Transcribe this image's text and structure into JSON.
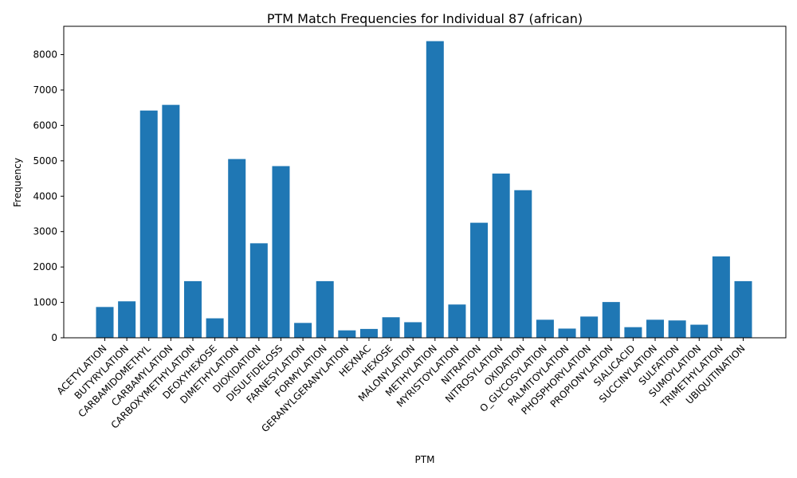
{
  "chart_data": {
    "type": "bar",
    "title": "PTM Match Frequencies for Individual 87 (african)",
    "xlabel": "PTM",
    "ylabel": "Frequency",
    "ylim": [
      0,
      8800
    ],
    "yticks": [
      0,
      1000,
      2000,
      3000,
      4000,
      5000,
      6000,
      7000,
      8000
    ],
    "grid": false,
    "legend": "none",
    "bar_color": "#1f77b4",
    "categories": [
      "ACETYLATION",
      "BUTYRYLATION",
      "CARBAMIDOMETHYL",
      "CARBAMYLATION",
      "CARBOXYMETHYLATION",
      "DEOXYHEXOSE",
      "DIMETHYLATION",
      "DIOXIDATION",
      "DISULFIDELOSS",
      "FARNESYLATION",
      "FORMYLATION",
      "GERANYLGERANYLATION",
      "HEXNAC",
      "HEXOSE",
      "MALONYLATION",
      "METHYLATION",
      "MYRISTOYLATION",
      "NITRATION",
      "NITROSYLATION",
      "OXIDATION",
      "O_GLYCOSYLATION",
      "PALMITOYLATION",
      "PHOSPHORYLATION",
      "PROPIONYLATION",
      "SIALICACID",
      "SUCCINYLATION",
      "SULFATION",
      "SUMOYLATION",
      "TRIMETHYLATION",
      "UBIQUITINATION"
    ],
    "values": [
      870,
      1030,
      6420,
      6580,
      1600,
      550,
      5050,
      2670,
      4850,
      420,
      1600,
      210,
      250,
      580,
      440,
      8380,
      940,
      3250,
      4640,
      4170,
      510,
      260,
      600,
      1010,
      300,
      510,
      490,
      370,
      2300,
      1600
    ]
  }
}
